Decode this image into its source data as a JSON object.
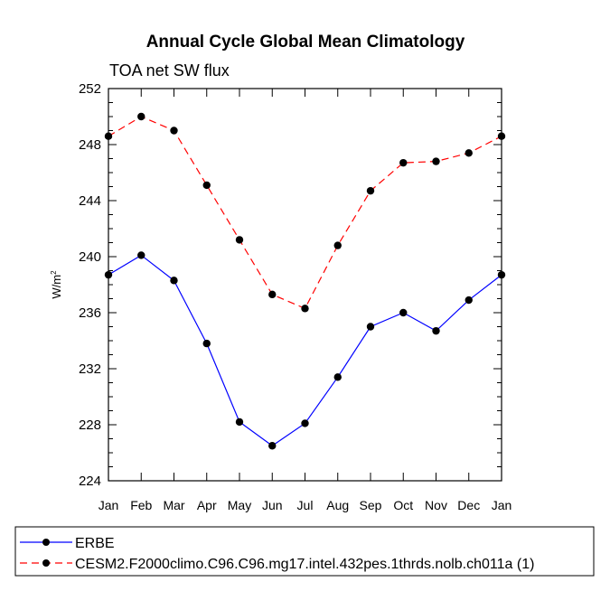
{
  "chart_data": {
    "type": "line",
    "title": "Annual Cycle Global Mean Climatology",
    "subtitle": "TOA net SW flux",
    "ylabel": "W/m",
    "ylabel_superscript": "2",
    "xlabel": "",
    "categories": [
      "Jan",
      "Feb",
      "Mar",
      "Apr",
      "May",
      "Jun",
      "Jul",
      "Aug",
      "Sep",
      "Oct",
      "Nov",
      "Dec",
      "Jan"
    ],
    "ylim": [
      224,
      252
    ],
    "yticks": [
      224,
      228,
      232,
      236,
      240,
      244,
      248,
      252
    ],
    "yticks_labels": [
      "224",
      "228",
      "232",
      "236",
      "240",
      "244",
      "248",
      "252"
    ],
    "series": [
      {
        "name": "ERBE",
        "color": "#0000ff",
        "dash": "solid",
        "values": [
          238.7,
          240.1,
          238.3,
          233.8,
          228.2,
          226.5,
          228.1,
          231.4,
          235.0,
          236.0,
          234.7,
          236.9,
          238.7
        ]
      },
      {
        "name": "CESM2.F2000climo.C96.C96.mg17.intel.432pes.1thrds.nolb.ch011a (1)",
        "color": "#ff0000",
        "dash": "dashed",
        "values": [
          248.6,
          250.0,
          249.0,
          245.1,
          241.2,
          237.3,
          236.3,
          240.8,
          244.7,
          246.7,
          246.8,
          247.4,
          248.6
        ]
      }
    ],
    "legend_position": "bottom"
  }
}
